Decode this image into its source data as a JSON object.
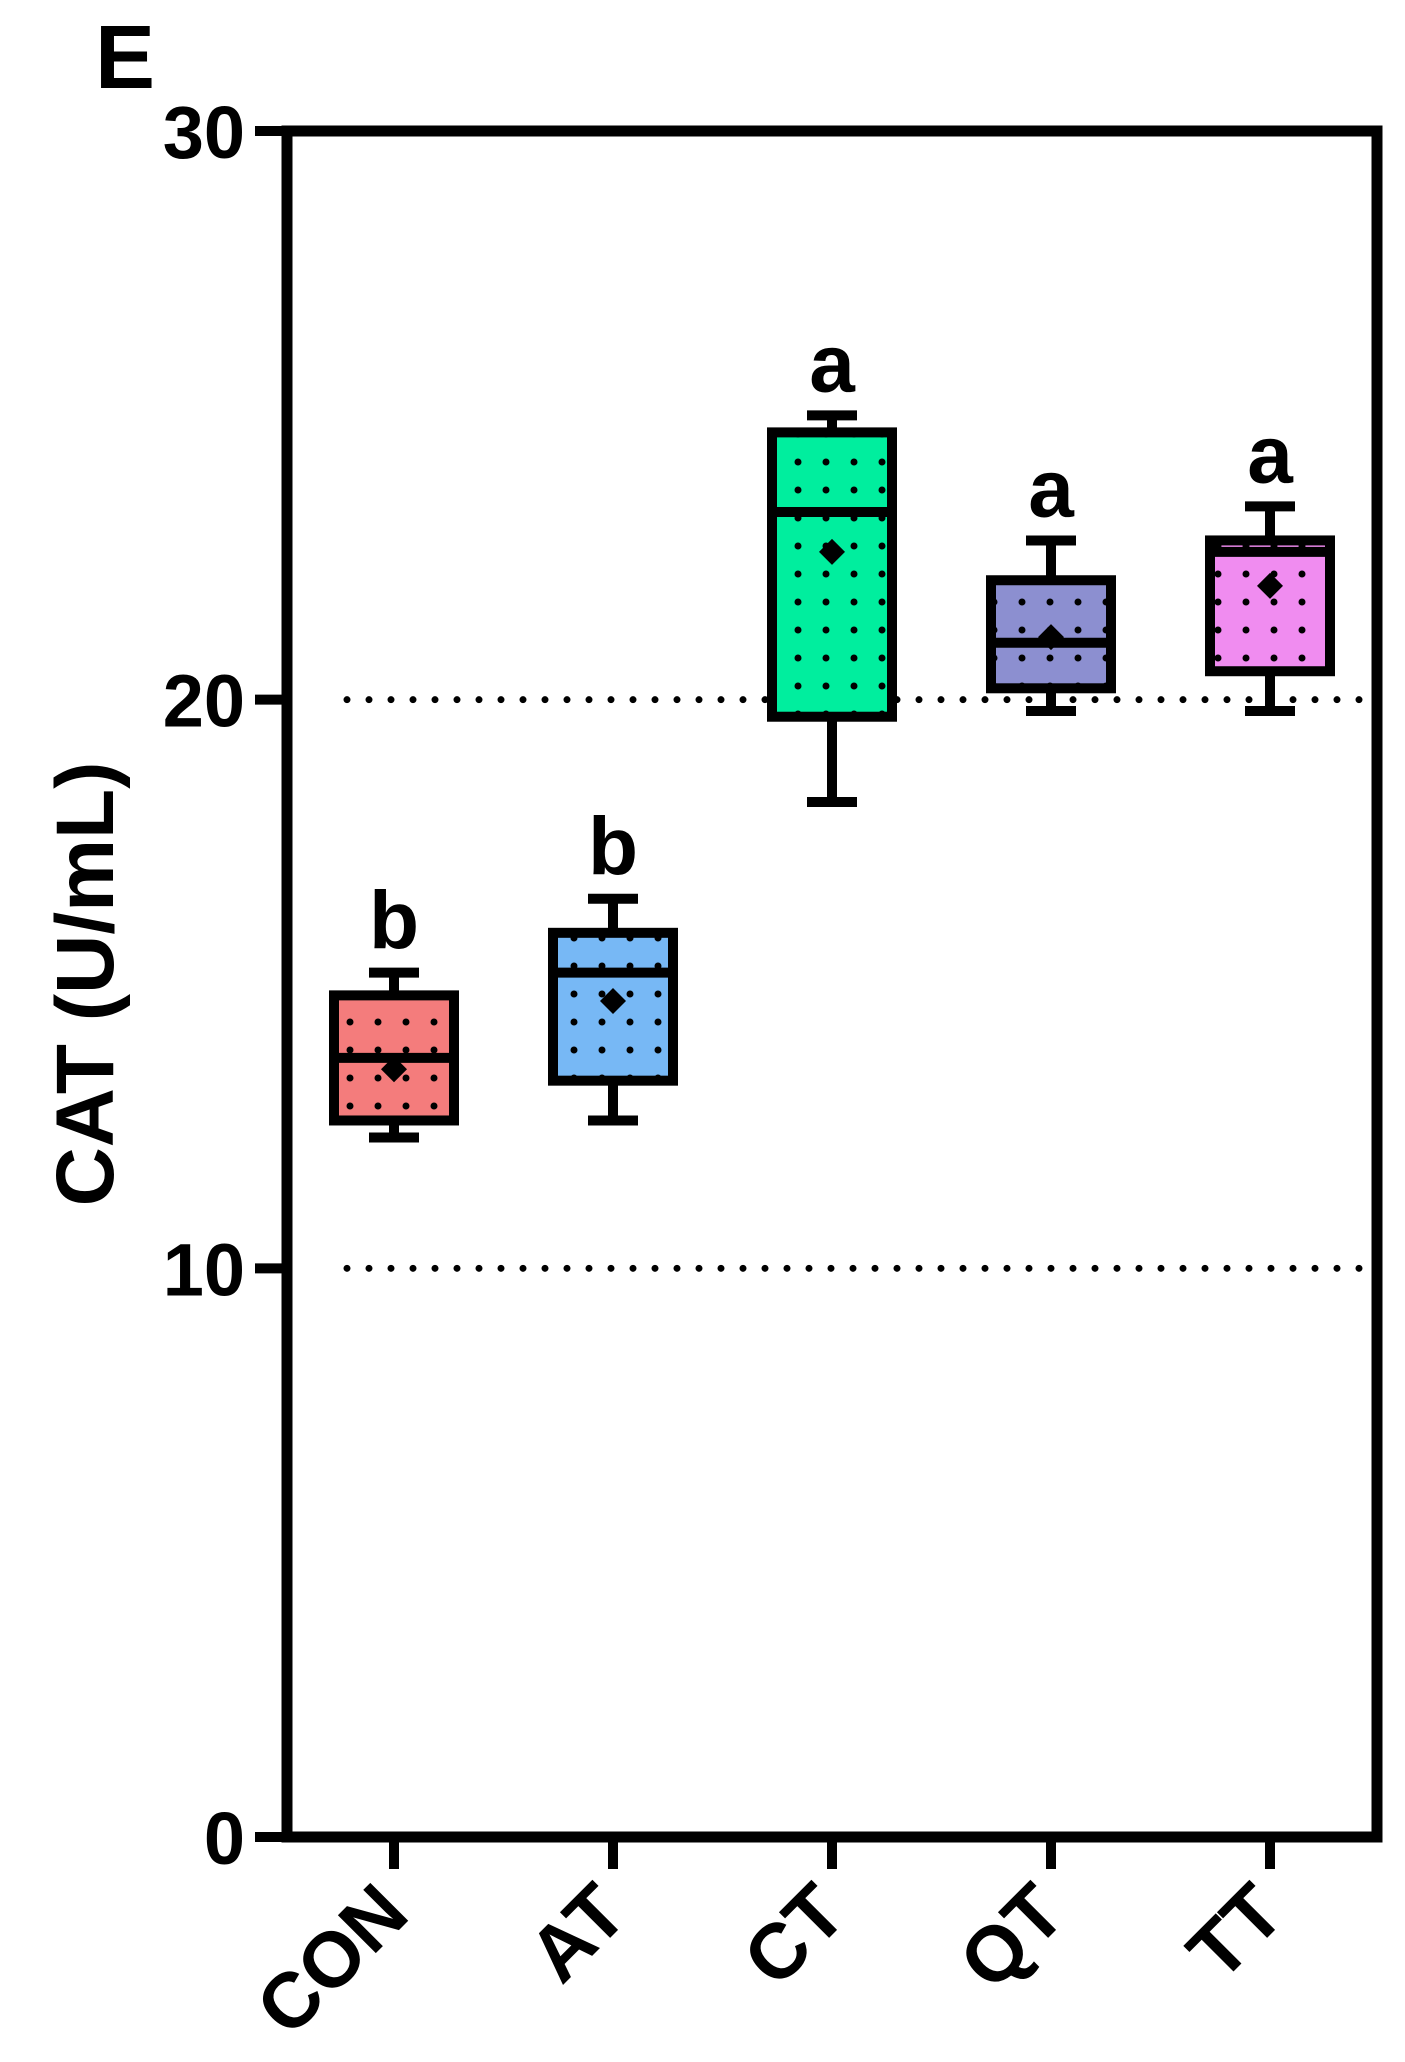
{
  "panel_label": "E",
  "chart_data": {
    "type": "box",
    "ylabel": "CAT (U/mL)",
    "ylim": [
      0,
      30
    ],
    "yticks": [
      0,
      10,
      20,
      30
    ],
    "reference_lines": [
      10,
      20
    ],
    "categories": [
      "CON",
      "AT",
      "CT",
      "QT",
      "TT"
    ],
    "boxes": [
      {
        "category": "CON",
        "min": 12.3,
        "q1": 12.6,
        "median": 13.7,
        "q3": 14.8,
        "max": 15.2,
        "mean": 13.5,
        "color": "#f47c7c",
        "letter": "b"
      },
      {
        "category": "AT",
        "min": 12.6,
        "q1": 13.3,
        "median": 15.2,
        "q3": 15.9,
        "max": 16.5,
        "mean": 14.7,
        "color": "#77b8f5",
        "letter": "b"
      },
      {
        "category": "CT",
        "min": 18.2,
        "q1": 19.7,
        "median": 23.3,
        "q3": 24.7,
        "max": 25.0,
        "mean": 22.6,
        "color": "#00ee9e",
        "letter": "a"
      },
      {
        "category": "QT",
        "min": 19.8,
        "q1": 20.2,
        "median": 21.0,
        "q3": 22.1,
        "max": 22.8,
        "mean": 21.1,
        "color": "#8c8fd0",
        "letter": "a"
      },
      {
        "category": "TT",
        "min": 19.8,
        "q1": 20.5,
        "median": 22.6,
        "q3": 22.8,
        "max": 23.4,
        "mean": 22.0,
        "color": "#f08cf0",
        "letter": "a"
      }
    ]
  }
}
